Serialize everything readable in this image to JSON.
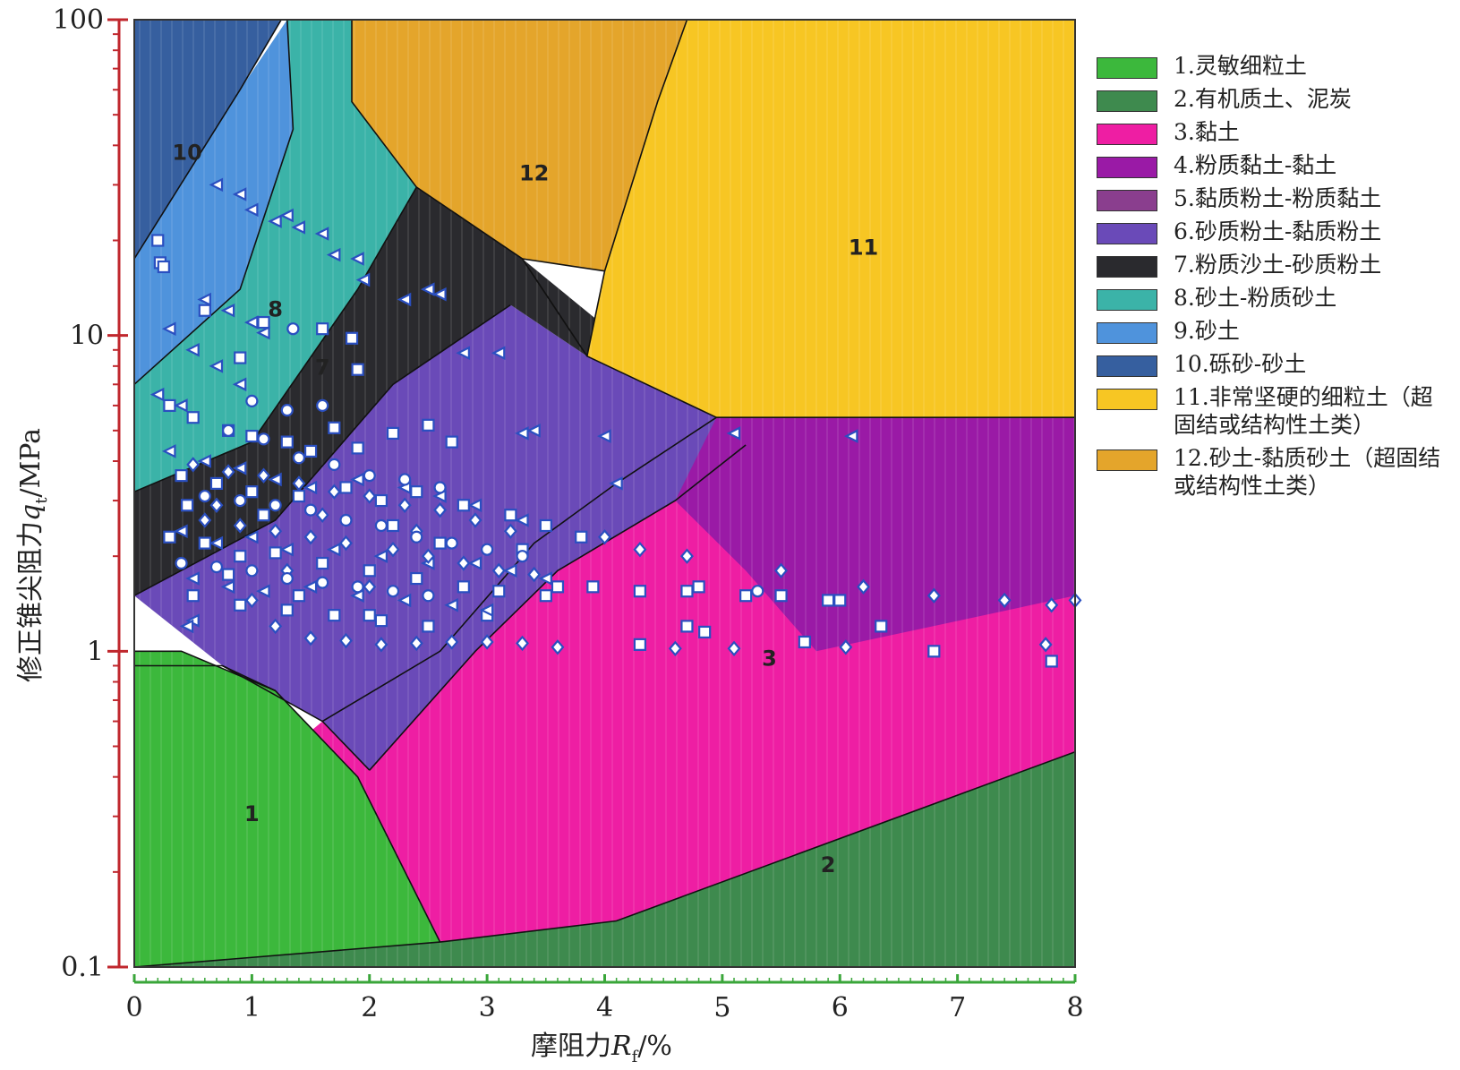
{
  "chart_data": {
    "type": "scatter",
    "xlabel": "摩阻力R_f/%",
    "ylabel": "修正锥尖阻力q_t/MPa",
    "xlim": [
      0,
      8
    ],
    "ylim": [
      0.1,
      100
    ],
    "y_scale": "log",
    "x_ticks": [
      "0",
      "1",
      "2",
      "3",
      "4",
      "5",
      "6",
      "7",
      "8"
    ],
    "y_ticks": [
      "0.1",
      "1",
      "10",
      "100"
    ],
    "grid": false,
    "legend_position": "right",
    "zones": [
      {
        "id": "1",
        "label": "1.灵敏细粒土",
        "color": "#3cb83c"
      },
      {
        "id": "2",
        "label": "2.有机质土、泥炭",
        "color": "#3e8a4e"
      },
      {
        "id": "3",
        "label": "3.黏土",
        "color": "#ee1ea3"
      },
      {
        "id": "4",
        "label": "4.粉质黏土-黏土",
        "color": "#9a1aa6"
      },
      {
        "id": "5",
        "label": "5.黏质粉土-粉质黏土",
        "color": "#8a3e8e"
      },
      {
        "id": "6",
        "label": "6.砂质粉土-黏质粉土",
        "color": "#6a4ab8"
      },
      {
        "id": "7",
        "label": "7.粉质沙土-砂质粉土",
        "color": "#2a2a2e"
      },
      {
        "id": "8",
        "label": "8.砂土-粉质砂土",
        "color": "#3bb3a8"
      },
      {
        "id": "9",
        "label": "9.砂土",
        "color": "#4f93dc"
      },
      {
        "id": "10",
        "label": "10.砾砂-砂土",
        "color": "#365f9f"
      },
      {
        "id": "11",
        "label": "11.非常坚硬的细粒土（超固结或结构性土类）",
        "color": "#f7c623"
      },
      {
        "id": "12",
        "label": "12.砂土-黏质砂土（超固结或结构性土类）",
        "color": "#e4a52b"
      }
    ],
    "series": [
      {
        "marker": "square",
        "points": [
          [
            0.2,
            20
          ],
          [
            0.22,
            17
          ],
          [
            0.25,
            16.5
          ],
          [
            0.6,
            12
          ],
          [
            0.9,
            8.5
          ],
          [
            1.1,
            11
          ],
          [
            1.6,
            10.5
          ],
          [
            1.85,
            9.8
          ],
          [
            1.9,
            7.8
          ],
          [
            0.3,
            6
          ],
          [
            0.5,
            5.5
          ],
          [
            0.8,
            5
          ],
          [
            1.0,
            4.8
          ],
          [
            1.3,
            4.6
          ],
          [
            1.5,
            4.3
          ],
          [
            1.7,
            5.1
          ],
          [
            1.9,
            4.4
          ],
          [
            2.2,
            4.9
          ],
          [
            2.5,
            5.2
          ],
          [
            2.7,
            4.6
          ],
          [
            0.4,
            3.6
          ],
          [
            0.7,
            3.4
          ],
          [
            1.0,
            3.2
          ],
          [
            1.4,
            3.1
          ],
          [
            1.8,
            3.3
          ],
          [
            2.1,
            3.0
          ],
          [
            2.4,
            3.2
          ],
          [
            2.8,
            2.9
          ],
          [
            3.2,
            2.7
          ],
          [
            3.5,
            2.5
          ],
          [
            3.8,
            2.3
          ],
          [
            0.3,
            2.3
          ],
          [
            0.6,
            2.2
          ],
          [
            0.9,
            2.0
          ],
          [
            1.2,
            2.05
          ],
          [
            1.6,
            1.9
          ],
          [
            2.0,
            1.8
          ],
          [
            2.4,
            1.7
          ],
          [
            2.8,
            1.6
          ],
          [
            3.1,
            1.55
          ],
          [
            3.5,
            1.5
          ],
          [
            3.9,
            1.6
          ],
          [
            0.5,
            1.5
          ],
          [
            0.9,
            1.4
          ],
          [
            1.3,
            1.35
          ],
          [
            1.7,
            1.3
          ],
          [
            2.1,
            1.25
          ],
          [
            2.5,
            1.2
          ],
          [
            3.0,
            1.3
          ],
          [
            3.6,
            1.6
          ],
          [
            4.3,
            1.55
          ],
          [
            4.7,
            1.55
          ],
          [
            4.8,
            1.6
          ],
          [
            5.2,
            1.5
          ],
          [
            5.5,
            1.5
          ],
          [
            5.9,
            1.45
          ],
          [
            6.0,
            1.45
          ],
          [
            4.3,
            1.05
          ],
          [
            4.7,
            1.2
          ],
          [
            4.85,
            1.15
          ],
          [
            5.7,
            1.07
          ],
          [
            6.35,
            1.2
          ],
          [
            6.8,
            1.0
          ],
          [
            7.8,
            0.93
          ],
          [
            2.0,
            1.3
          ],
          [
            1.4,
            1.5
          ],
          [
            0.8,
            1.75
          ],
          [
            2.2,
            2.5
          ],
          [
            2.6,
            2.2
          ],
          [
            3.3,
            2.1
          ],
          [
            1.1,
            2.7
          ],
          [
            0.45,
            2.9
          ]
        ]
      },
      {
        "marker": "triangle",
        "points": [
          [
            0.7,
            30
          ],
          [
            0.9,
            28
          ],
          [
            1.0,
            25
          ],
          [
            1.2,
            23
          ],
          [
            1.3,
            24
          ],
          [
            1.4,
            22
          ],
          [
            1.6,
            21
          ],
          [
            1.7,
            18
          ],
          [
            1.9,
            17.5
          ],
          [
            1.95,
            15
          ],
          [
            0.6,
            13
          ],
          [
            0.8,
            12
          ],
          [
            1.0,
            11
          ],
          [
            1.1,
            10.2
          ],
          [
            0.3,
            10.5
          ],
          [
            0.5,
            9
          ],
          [
            0.7,
            8
          ],
          [
            0.9,
            7
          ],
          [
            0.2,
            6.5
          ],
          [
            0.4,
            6
          ],
          [
            2.3,
            13
          ],
          [
            2.5,
            14
          ],
          [
            2.6,
            13.5
          ],
          [
            2.8,
            8.8
          ],
          [
            3.1,
            8.8
          ],
          [
            3.4,
            5.0
          ],
          [
            3.3,
            4.9
          ],
          [
            4.0,
            4.8
          ],
          [
            4.1,
            3.4
          ],
          [
            5.1,
            4.9
          ],
          [
            6.1,
            4.8
          ],
          [
            0.3,
            4.3
          ],
          [
            0.6,
            4.0
          ],
          [
            0.9,
            3.8
          ],
          [
            1.2,
            3.5
          ],
          [
            1.5,
            3.3
          ],
          [
            1.9,
            3.5
          ],
          [
            2.3,
            3.3
          ],
          [
            2.6,
            3.1
          ],
          [
            2.9,
            2.9
          ],
          [
            3.3,
            2.6
          ],
          [
            0.4,
            2.4
          ],
          [
            0.7,
            2.2
          ],
          [
            1.0,
            2.3
          ],
          [
            1.3,
            2.1
          ],
          [
            1.7,
            2.1
          ],
          [
            2.1,
            2.0
          ],
          [
            2.5,
            1.9
          ],
          [
            2.9,
            1.9
          ],
          [
            3.2,
            1.8
          ],
          [
            3.5,
            1.7
          ],
          [
            0.5,
            1.7
          ],
          [
            0.8,
            1.6
          ],
          [
            1.1,
            1.55
          ],
          [
            1.5,
            1.6
          ],
          [
            1.9,
            1.5
          ],
          [
            2.3,
            1.45
          ],
          [
            2.7,
            1.4
          ],
          [
            3.0,
            1.35
          ],
          [
            0.5,
            1.25
          ],
          [
            0.45,
            1.2
          ]
        ]
      },
      {
        "marker": "diamond",
        "points": [
          [
            0.5,
            3.9
          ],
          [
            0.8,
            3.7
          ],
          [
            1.1,
            3.6
          ],
          [
            1.4,
            3.4
          ],
          [
            1.7,
            3.2
          ],
          [
            2.0,
            3.1
          ],
          [
            2.3,
            2.9
          ],
          [
            2.6,
            2.8
          ],
          [
            2.9,
            2.6
          ],
          [
            3.2,
            2.4
          ],
          [
            0.6,
            2.6
          ],
          [
            0.9,
            2.5
          ],
          [
            1.2,
            2.4
          ],
          [
            1.5,
            2.3
          ],
          [
            1.8,
            2.2
          ],
          [
            2.2,
            2.1
          ],
          [
            2.5,
            2.0
          ],
          [
            2.8,
            1.9
          ],
          [
            3.1,
            1.8
          ],
          [
            3.4,
            1.75
          ],
          [
            1.2,
            1.2
          ],
          [
            1.5,
            1.1
          ],
          [
            1.8,
            1.08
          ],
          [
            2.1,
            1.05
          ],
          [
            2.4,
            1.06
          ],
          [
            2.7,
            1.07
          ],
          [
            3.0,
            1.07
          ],
          [
            3.3,
            1.06
          ],
          [
            3.6,
            1.03
          ],
          [
            4.0,
            2.3
          ],
          [
            4.3,
            2.1
          ],
          [
            4.7,
            2.0
          ],
          [
            6.2,
            1.6
          ],
          [
            6.8,
            1.5
          ],
          [
            7.4,
            1.45
          ],
          [
            7.8,
            1.4
          ],
          [
            8.0,
            1.45
          ],
          [
            4.6,
            1.02
          ],
          [
            5.1,
            1.02
          ],
          [
            6.05,
            1.03
          ],
          [
            7.75,
            1.05
          ],
          [
            5.5,
            1.8
          ],
          [
            1.0,
            1.45
          ],
          [
            1.3,
            1.8
          ],
          [
            2.0,
            1.6
          ],
          [
            0.7,
            2.9
          ],
          [
            1.6,
            2.7
          ],
          [
            2.4,
            2.4
          ]
        ]
      },
      {
        "marker": "circle",
        "points": [
          [
            1.0,
            6.2
          ],
          [
            1.3,
            5.8
          ],
          [
            1.6,
            6.0
          ],
          [
            0.8,
            5.0
          ],
          [
            1.1,
            4.7
          ],
          [
            1.4,
            4.1
          ],
          [
            1.7,
            3.9
          ],
          [
            2.0,
            3.6
          ],
          [
            2.3,
            3.5
          ],
          [
            2.6,
            3.3
          ],
          [
            0.6,
            3.1
          ],
          [
            0.9,
            3.0
          ],
          [
            1.2,
            2.9
          ],
          [
            1.5,
            2.8
          ],
          [
            1.8,
            2.6
          ],
          [
            2.1,
            2.5
          ],
          [
            2.4,
            2.3
          ],
          [
            2.7,
            2.2
          ],
          [
            3.0,
            2.1
          ],
          [
            3.3,
            2.0
          ],
          [
            0.4,
            1.9
          ],
          [
            0.7,
            1.85
          ],
          [
            1.0,
            1.8
          ],
          [
            1.3,
            1.7
          ],
          [
            1.6,
            1.65
          ],
          [
            1.9,
            1.6
          ],
          [
            2.2,
            1.55
          ],
          [
            2.5,
            1.5
          ],
          [
            5.3,
            1.55
          ],
          [
            1.35,
            10.5
          ]
        ]
      }
    ]
  },
  "legend": {
    "items": [
      {
        "text": "1.灵敏细粒土",
        "color": "#3cb83c"
      },
      {
        "text": "2.有机质土、泥炭",
        "color": "#3e8a4e"
      },
      {
        "text": "3.黏土",
        "color": "#ee1ea3"
      },
      {
        "text": "4.粉质黏土-黏土",
        "color": "#9a1aa6"
      },
      {
        "text": "5.黏质粉土-粉质黏土",
        "color": "#8a3e8e"
      },
      {
        "text": "6.砂质粉土-黏质粉土",
        "color": "#6a4ab8"
      },
      {
        "text": "7.粉质沙土-砂质粉土",
        "color": "#2a2a2e"
      },
      {
        "text": "8.砂土-粉质砂土",
        "color": "#3bb3a8"
      },
      {
        "text": "9.砂土",
        "color": "#4f93dc"
      },
      {
        "text": "10.砾砂-砂土",
        "color": "#365f9f"
      },
      {
        "text": "11.非常坚硬的细粒土（超固结或结构性土类）",
        "color": "#f7c623"
      },
      {
        "text": "12.砂土-黏质砂土（超固结或结构性土类）",
        "color": "#e4a52b"
      }
    ]
  },
  "axes": {
    "y_axis_color": "#c0272d",
    "x_axis_color": "#3aa63a",
    "marker_stroke": "#2a4fc0",
    "marker_fill": "#ffffff"
  }
}
